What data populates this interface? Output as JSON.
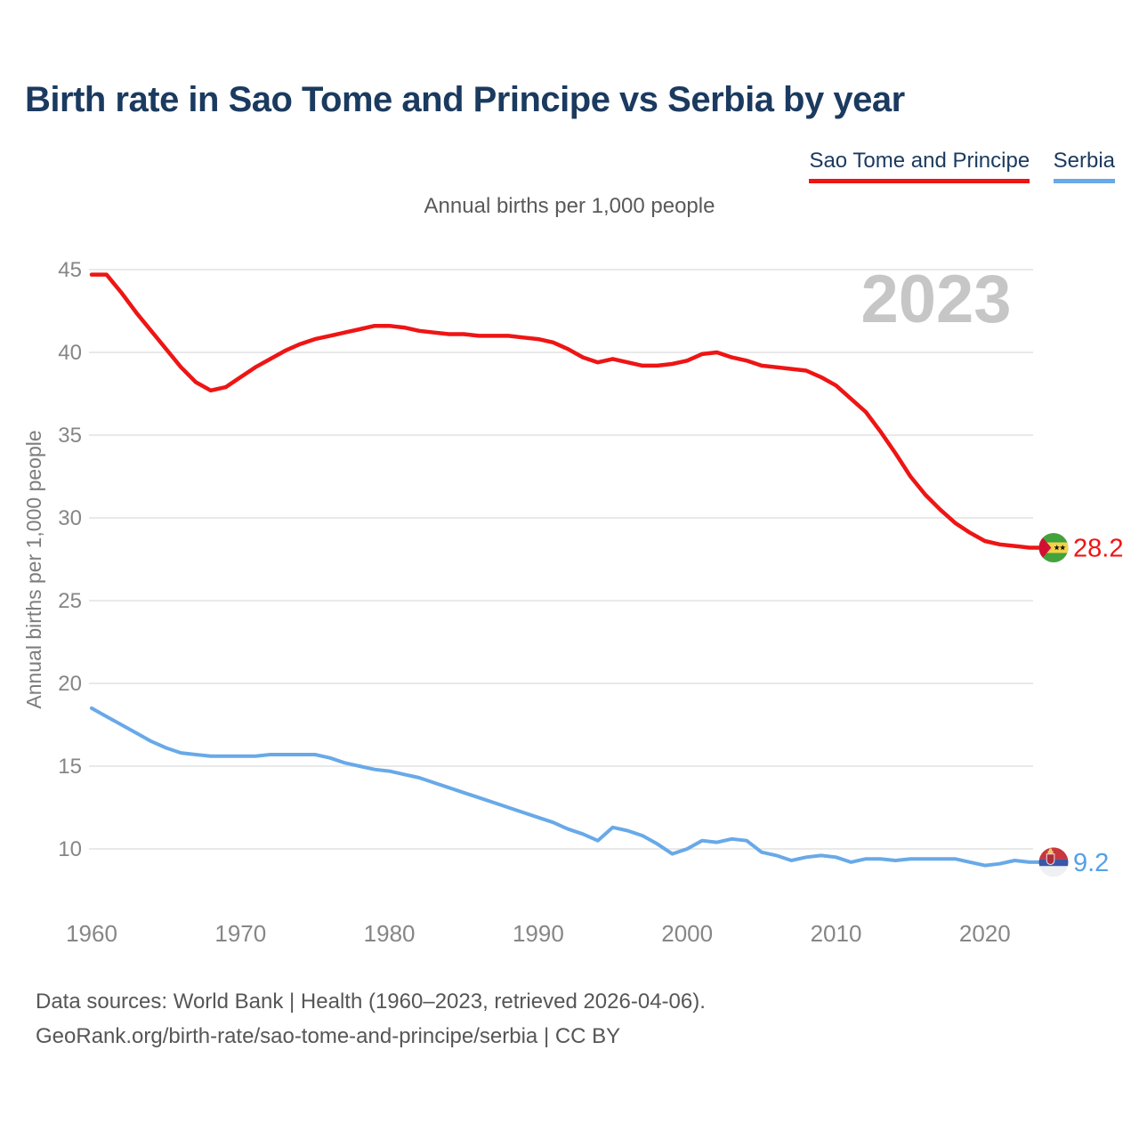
{
  "title": "Birth rate in Sao Tome and Principe vs Serbia by year",
  "subtitle": "Annual births per 1,000 people",
  "watermark": "2023",
  "legend": [
    {
      "label": "Sao Tome and Principe",
      "color": "#ee1515"
    },
    {
      "label": "Serbia",
      "color": "#68a9e8"
    }
  ],
  "end_labels": [
    {
      "series": "Sao Tome and Principe",
      "value": "28.2",
      "color": "#ee1515",
      "flag": "sao-tome-and-principe-flag-icon"
    },
    {
      "series": "Serbia",
      "value": "9.2",
      "color": "#55a0e6",
      "flag": "serbia-flag-icon"
    }
  ],
  "footer": {
    "line1": "Data sources: World Bank | Health (1960–2023, retrieved 2026-04-06).",
    "line2": "GeoRank.org/birth-rate/sao-tome-and-principe/serbia | CC BY"
  },
  "chart_data": {
    "type": "line",
    "title": "Birth rate in Sao Tome and Principe vs Serbia by year",
    "xlabel": "",
    "ylabel": "Annual births per 1,000 people",
    "x_start": 1960,
    "x_end": 2023,
    "x_ticks": [
      1960,
      1970,
      1980,
      1990,
      2000,
      2010,
      2020
    ],
    "y_ticks": [
      10,
      15,
      20,
      25,
      30,
      35,
      40,
      45
    ],
    "ylim": [
      7.5,
      46
    ],
    "grid": true,
    "legend_position": "top-right",
    "series": [
      {
        "name": "Sao Tome and Principe",
        "id": "sao-tome-and-principe",
        "color": "#ee1515",
        "values": [
          44.7,
          44.7,
          43.6,
          42.4,
          41.3,
          40.2,
          39.1,
          38.2,
          37.7,
          37.9,
          38.5,
          39.1,
          39.6,
          40.1,
          40.5,
          40.8,
          41.0,
          41.2,
          41.4,
          41.6,
          41.6,
          41.5,
          41.3,
          41.2,
          41.1,
          41.1,
          41.0,
          41.0,
          41.0,
          40.9,
          40.8,
          40.6,
          40.2,
          39.7,
          39.4,
          39.6,
          39.4,
          39.2,
          39.2,
          39.3,
          39.5,
          39.9,
          40.0,
          39.7,
          39.5,
          39.2,
          39.1,
          39.0,
          38.9,
          38.5,
          38.0,
          37.2,
          36.4,
          35.2,
          33.9,
          32.5,
          31.4,
          30.5,
          29.7,
          29.1,
          28.6,
          28.4,
          28.3,
          28.2
        ]
      },
      {
        "name": "Serbia",
        "id": "serbia",
        "color": "#68a9e8",
        "values": [
          18.5,
          18.0,
          17.5,
          17.0,
          16.5,
          16.1,
          15.8,
          15.7,
          15.6,
          15.6,
          15.6,
          15.6,
          15.7,
          15.7,
          15.7,
          15.7,
          15.5,
          15.2,
          15.0,
          14.8,
          14.7,
          14.5,
          14.3,
          14.0,
          13.7,
          13.4,
          13.1,
          12.8,
          12.5,
          12.2,
          11.9,
          11.6,
          11.2,
          10.9,
          10.5,
          11.3,
          11.1,
          10.8,
          10.3,
          9.7,
          10.0,
          10.5,
          10.4,
          10.6,
          10.5,
          9.8,
          9.6,
          9.3,
          9.5,
          9.6,
          9.5,
          9.2,
          9.4,
          9.4,
          9.3,
          9.4,
          9.4,
          9.4,
          9.4,
          9.2,
          9.0,
          9.1,
          9.3,
          9.2
        ]
      }
    ]
  }
}
